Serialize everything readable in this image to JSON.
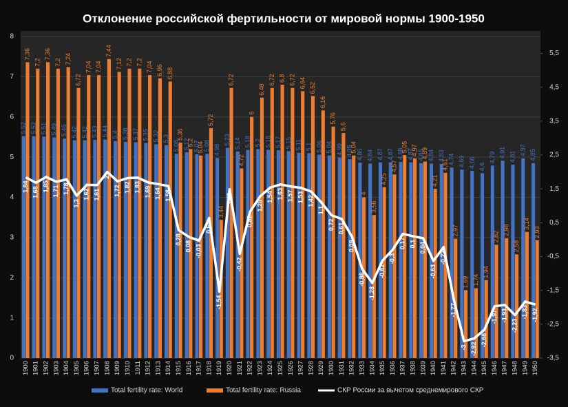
{
  "chart_data": {
    "type": "bar",
    "title": "Отклонение российской фертильности от мировой нормы 1900-1950",
    "categories": [
      "1900",
      "1901",
      "1902",
      "1903",
      "1904",
      "1905",
      "1906",
      "1907",
      "1908",
      "1909",
      "1910",
      "1911",
      "1912",
      "1913",
      "1914",
      "1915",
      "1916",
      "1917",
      "1918",
      "1919",
      "1920",
      "1921",
      "1922",
      "1923",
      "1924",
      "1925",
      "1926",
      "1927",
      "1928",
      "1929",
      "1930",
      "1931",
      "1932",
      "1933",
      "1934",
      "1935",
      "1936",
      "1937",
      "1938",
      "1939",
      "1940",
      "1941",
      "1942",
      "1943",
      "1944",
      "1945",
      "1946",
      "1947",
      "1948",
      "1949",
      "1950"
    ],
    "series": [
      {
        "name": "Total fertility rate: World",
        "color": "#4472c4",
        "type": "bar",
        "values": [
          5.52,
          5.52,
          5.51,
          5.49,
          5.46,
          5.42,
          5.42,
          5.43,
          5.44,
          5.4,
          5.38,
          5.37,
          5.35,
          5.32,
          5.3,
          5.08,
          5.12,
          5.07,
          5.08,
          4.98,
          5.23,
          5.14,
          5.18,
          5.2,
          5.18,
          5.17,
          5.15,
          5.11,
          5.1,
          5.06,
          5.04,
          4.99,
          4.95,
          4.86,
          4.84,
          4.87,
          4.87,
          4.88,
          4.87,
          4.85,
          4.84,
          4.83,
          4.74,
          4.69,
          4.66,
          4.6,
          4.79,
          4.91,
          4.81,
          4.97,
          4.85
        ],
        "value_labels": [
          "5,52",
          "5,52",
          "5,51",
          "5,49",
          "5,46",
          "5,42",
          "5,42",
          "5,43",
          "5,44",
          "5,4",
          "5,38",
          "5,37",
          "5,35",
          "5,32",
          "5,3",
          "5,08",
          "5,12",
          "5,07",
          "5,08",
          "4,98",
          "5,23",
          "5,14",
          "5,18",
          "5,2",
          "5,18",
          "5,17",
          "5,15",
          "5,11",
          "5,1",
          "5,06",
          "5,04",
          "4,99",
          "4,95",
          "4,86",
          "4,84",
          "4,87",
          "4,87",
          "4,88",
          "4,87",
          "4,85",
          "4,84",
          "4,83",
          "4,74",
          "4,69",
          "4,66",
          "4,6",
          "4,79",
          "4,91",
          "4,81",
          "4,97",
          "4,85"
        ]
      },
      {
        "name": "Total fertility rate: Russia",
        "color": "#ed7d31",
        "type": "bar",
        "values": [
          7.36,
          7.2,
          7.36,
          7.2,
          7.24,
          6.72,
          7.04,
          7.04,
          7.44,
          7.12,
          7.2,
          7.2,
          7.04,
          6.96,
          6.88,
          5.36,
          5.2,
          5.04,
          5.72,
          3.44,
          6.72,
          4.72,
          6,
          6.48,
          6.72,
          6.8,
          6.72,
          6.64,
          6.52,
          6.16,
          5.76,
          5.6,
          5.04,
          4,
          3.56,
          4.25,
          4.57,
          5.05,
          4.97,
          4.89,
          4.21,
          4.61,
          2.97,
          1.69,
          1.74,
          1.94,
          2.82,
          2.98,
          2.58,
          3.14,
          2.93
        ],
        "value_labels": [
          "7,36",
          "7,2",
          "7,36",
          "7,2",
          "7,24",
          "6,72",
          "7,04",
          "7,04",
          "7,44",
          "7,12",
          "7,2",
          "7,2",
          "7,04",
          "6,96",
          "6,88",
          "5,36",
          "5,2",
          "5,04",
          "5,72",
          "3,44",
          "6,72",
          "4,72",
          "6",
          "6,48",
          "6,72",
          "6,8",
          "6,72",
          "6,64",
          "6,52",
          "6,16",
          "5,76",
          "5,6",
          "5,04",
          "4",
          "3,56",
          "4,25",
          "4,57",
          "5,05",
          "4,97",
          "4,89",
          "4,21",
          "4,61",
          "2,97",
          "1,69",
          "1,74",
          "1,94",
          "2,82",
          "2,98",
          "2,58",
          "3,14",
          "2,93"
        ]
      },
      {
        "name": "СКР России за вычетом среднемирового СКР",
        "color": "#ffffff",
        "type": "line",
        "axis": "y2",
        "values": [
          1.84,
          1.68,
          1.85,
          1.71,
          1.78,
          1.3,
          1.62,
          1.61,
          2,
          1.72,
          1.82,
          1.83,
          1.69,
          1.64,
          1.58,
          0.28,
          0.08,
          -0.03,
          0.64,
          -1.54,
          1.49,
          -0.42,
          0.82,
          1.28,
          1.54,
          1.63,
          1.57,
          1.53,
          1.42,
          1.1,
          0.72,
          0.61,
          0.09,
          -0.86,
          -1.28,
          -0.62,
          -0.3,
          0.17,
          0.1,
          0.04,
          -0.63,
          -0.22,
          -1.77,
          -3,
          -2.92,
          -2.66,
          -1.97,
          -1.93,
          -2.23,
          -1.83,
          -1.92
        ],
        "value_labels": [
          "1,84",
          "1,68",
          "1,85",
          "1,71",
          "1,78",
          "1,3",
          "1,62",
          "1,61",
          "2",
          "1,72",
          "1,82",
          "1,83",
          "1,69",
          "1,64",
          "1,58",
          "0,28",
          "0,08",
          "-0,03",
          "0,64",
          "-1,54",
          "1,49",
          "-0,42",
          "0,82",
          "1,28",
          "1,54",
          "1,63",
          "1,57",
          "1,53",
          "1,42",
          "1,1",
          "0,72",
          "0,61",
          "0,09",
          "-0,86",
          "-1,28",
          "-0,62",
          "-0,3",
          "0,17",
          "0,1",
          "0,04",
          "-0,63",
          "-0,22",
          "-1,77",
          "-3",
          "-2,92",
          "-2,66",
          "-1,97",
          "-1,93",
          "-2,23",
          "-1,83",
          "-1,92"
        ]
      }
    ],
    "ylim": [
      0,
      8
    ],
    "yticks": [
      0,
      1,
      2,
      3,
      4,
      5,
      6,
      7,
      8
    ],
    "y2lim": [
      -3.5,
      6
    ],
    "y2ticks": [
      {
        "value": -3.5,
        "label": "-3,5"
      },
      {
        "value": -2.5,
        "label": "-2,5"
      },
      {
        "value": -1.5,
        "label": "-1,5"
      },
      {
        "value": -0.5,
        "label": "-0,5"
      },
      {
        "value": 0.5,
        "label": "0,5"
      },
      {
        "value": 1.5,
        "label": "1,5"
      },
      {
        "value": 2.5,
        "label": "2,5"
      },
      {
        "value": 3.5,
        "label": "3,5"
      },
      {
        "value": 4.5,
        "label": "4,5"
      },
      {
        "value": 5.5,
        "label": "5,5"
      }
    ],
    "grid": true,
    "legend": "bottom"
  }
}
